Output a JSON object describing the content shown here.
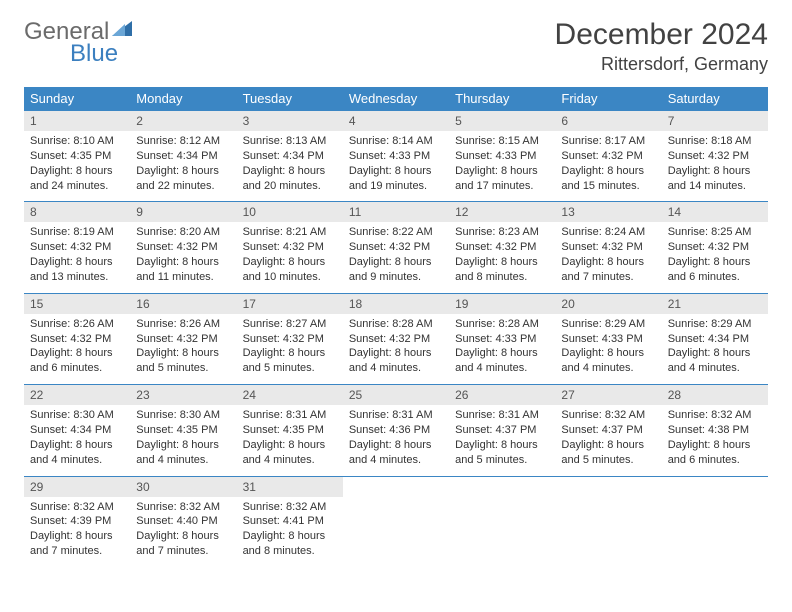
{
  "brand": {
    "part1": "General",
    "part2": "Blue"
  },
  "title": "December 2024",
  "location": "Rittersdorf, Germany",
  "colors": {
    "header_bg": "#3b86c4",
    "header_text": "#ffffff",
    "daynum_bg": "#e9e9e9",
    "rule": "#3b86c4",
    "logo_gray": "#6b6b6b",
    "logo_blue": "#3b7fbf",
    "text": "#333333",
    "title_color": "#424242"
  },
  "typography": {
    "title_fontsize": 30,
    "location_fontsize": 18,
    "dayheader_fontsize": 13,
    "daynum_fontsize": 12,
    "cell_fontsize": 11
  },
  "day_headers": [
    "Sunday",
    "Monday",
    "Tuesday",
    "Wednesday",
    "Thursday",
    "Friday",
    "Saturday"
  ],
  "weeks": [
    [
      {
        "n": "1",
        "sr": "8:10 AM",
        "ss": "4:35 PM",
        "dl": "8 hours and 24 minutes."
      },
      {
        "n": "2",
        "sr": "8:12 AM",
        "ss": "4:34 PM",
        "dl": "8 hours and 22 minutes."
      },
      {
        "n": "3",
        "sr": "8:13 AM",
        "ss": "4:34 PM",
        "dl": "8 hours and 20 minutes."
      },
      {
        "n": "4",
        "sr": "8:14 AM",
        "ss": "4:33 PM",
        "dl": "8 hours and 19 minutes."
      },
      {
        "n": "5",
        "sr": "8:15 AM",
        "ss": "4:33 PM",
        "dl": "8 hours and 17 minutes."
      },
      {
        "n": "6",
        "sr": "8:17 AM",
        "ss": "4:32 PM",
        "dl": "8 hours and 15 minutes."
      },
      {
        "n": "7",
        "sr": "8:18 AM",
        "ss": "4:32 PM",
        "dl": "8 hours and 14 minutes."
      }
    ],
    [
      {
        "n": "8",
        "sr": "8:19 AM",
        "ss": "4:32 PM",
        "dl": "8 hours and 13 minutes."
      },
      {
        "n": "9",
        "sr": "8:20 AM",
        "ss": "4:32 PM",
        "dl": "8 hours and 11 minutes."
      },
      {
        "n": "10",
        "sr": "8:21 AM",
        "ss": "4:32 PM",
        "dl": "8 hours and 10 minutes."
      },
      {
        "n": "11",
        "sr": "8:22 AM",
        "ss": "4:32 PM",
        "dl": "8 hours and 9 minutes."
      },
      {
        "n": "12",
        "sr": "8:23 AM",
        "ss": "4:32 PM",
        "dl": "8 hours and 8 minutes."
      },
      {
        "n": "13",
        "sr": "8:24 AM",
        "ss": "4:32 PM",
        "dl": "8 hours and 7 minutes."
      },
      {
        "n": "14",
        "sr": "8:25 AM",
        "ss": "4:32 PM",
        "dl": "8 hours and 6 minutes."
      }
    ],
    [
      {
        "n": "15",
        "sr": "8:26 AM",
        "ss": "4:32 PM",
        "dl": "8 hours and 6 minutes."
      },
      {
        "n": "16",
        "sr": "8:26 AM",
        "ss": "4:32 PM",
        "dl": "8 hours and 5 minutes."
      },
      {
        "n": "17",
        "sr": "8:27 AM",
        "ss": "4:32 PM",
        "dl": "8 hours and 5 minutes."
      },
      {
        "n": "18",
        "sr": "8:28 AM",
        "ss": "4:32 PM",
        "dl": "8 hours and 4 minutes."
      },
      {
        "n": "19",
        "sr": "8:28 AM",
        "ss": "4:33 PM",
        "dl": "8 hours and 4 minutes."
      },
      {
        "n": "20",
        "sr": "8:29 AM",
        "ss": "4:33 PM",
        "dl": "8 hours and 4 minutes."
      },
      {
        "n": "21",
        "sr": "8:29 AM",
        "ss": "4:34 PM",
        "dl": "8 hours and 4 minutes."
      }
    ],
    [
      {
        "n": "22",
        "sr": "8:30 AM",
        "ss": "4:34 PM",
        "dl": "8 hours and 4 minutes."
      },
      {
        "n": "23",
        "sr": "8:30 AM",
        "ss": "4:35 PM",
        "dl": "8 hours and 4 minutes."
      },
      {
        "n": "24",
        "sr": "8:31 AM",
        "ss": "4:35 PM",
        "dl": "8 hours and 4 minutes."
      },
      {
        "n": "25",
        "sr": "8:31 AM",
        "ss": "4:36 PM",
        "dl": "8 hours and 4 minutes."
      },
      {
        "n": "26",
        "sr": "8:31 AM",
        "ss": "4:37 PM",
        "dl": "8 hours and 5 minutes."
      },
      {
        "n": "27",
        "sr": "8:32 AM",
        "ss": "4:37 PM",
        "dl": "8 hours and 5 minutes."
      },
      {
        "n": "28",
        "sr": "8:32 AM",
        "ss": "4:38 PM",
        "dl": "8 hours and 6 minutes."
      }
    ],
    [
      {
        "n": "29",
        "sr": "8:32 AM",
        "ss": "4:39 PM",
        "dl": "8 hours and 7 minutes."
      },
      {
        "n": "30",
        "sr": "8:32 AM",
        "ss": "4:40 PM",
        "dl": "8 hours and 7 minutes."
      },
      {
        "n": "31",
        "sr": "8:32 AM",
        "ss": "4:41 PM",
        "dl": "8 hours and 8 minutes."
      },
      null,
      null,
      null,
      null
    ]
  ],
  "labels": {
    "sunrise": "Sunrise: ",
    "sunset": "Sunset: ",
    "daylight": "Daylight: "
  }
}
